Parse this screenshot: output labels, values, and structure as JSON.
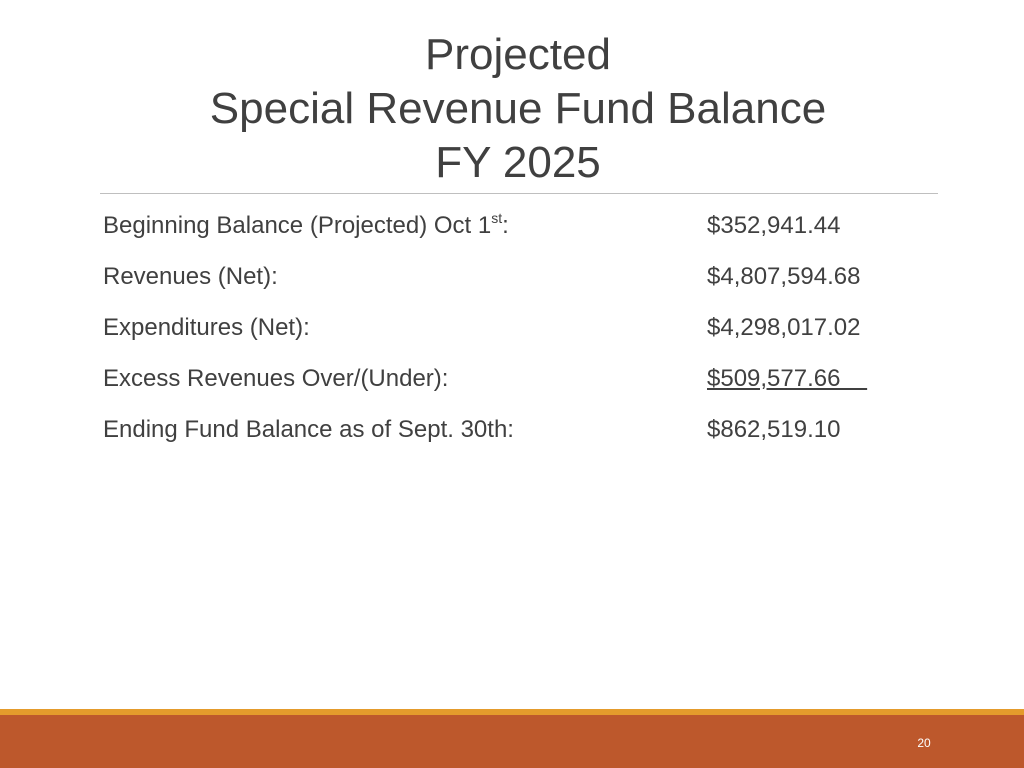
{
  "slide": {
    "title_lines": [
      "Projected",
      "Special Revenue Fund Balance",
      "FY 2025"
    ],
    "rows": [
      {
        "label": "Beginning Balance (Projected) Oct 1",
        "label_sup": "st",
        "label_suffix": ":",
        "value": "$352,941.44"
      },
      {
        "label": "Revenues (Net):",
        "value": "$4,807,594.68"
      },
      {
        "label": "Expenditures (Net):",
        "value": "$4,298,017.02"
      },
      {
        "label": "Excess Revenues Over/(Under):",
        "value": "$509,577.66    "
      },
      {
        "label": "Ending Fund Balance as of Sept. 30th:",
        "value": "$862,519.10"
      }
    ],
    "page_number": "20"
  },
  "colors": {
    "footer_band": "#bd582c",
    "footer_accent": "#e49b2c",
    "text": "#404040"
  }
}
